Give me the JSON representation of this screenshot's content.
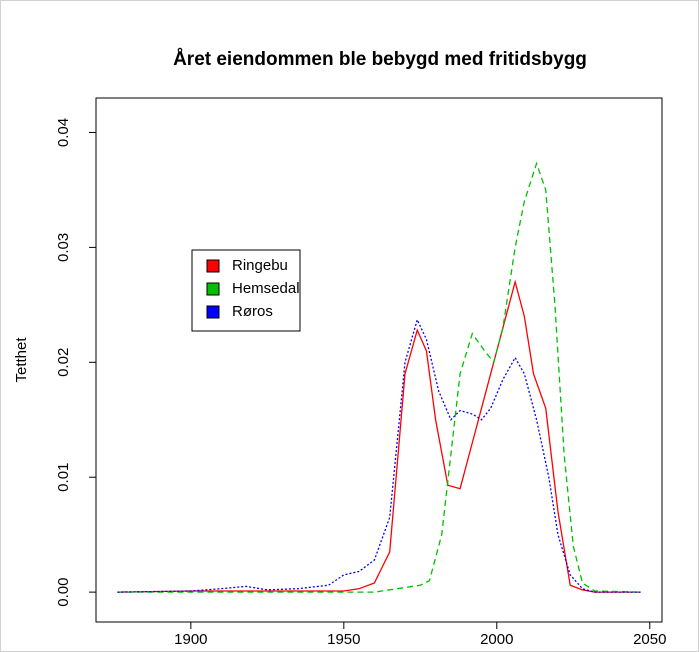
{
  "chart_data": {
    "type": "line",
    "title": "Året eiendommen ble bebygd med fritidsbygg",
    "y_label": "Tetthet",
    "xlim": [
      1869,
      2054
    ],
    "ylim": [
      -0.0026,
      0.043
    ],
    "xticks": [
      1900,
      1950,
      2000,
      2050
    ],
    "yticks": [
      {
        "value": 0,
        "label": "0.00"
      },
      0.01,
      0.02,
      0.03,
      0.04
    ],
    "legend": "left",
    "series": [
      {
        "name": "Ringebu",
        "color": "#ff0000",
        "linestyle": "solid",
        "x": [
          1876,
          1900,
          1930,
          1950,
          1955,
          1960,
          1965,
          1970,
          1974,
          1977,
          1980,
          1984,
          1988,
          1992,
          1996,
          2000,
          2004,
          2006,
          2009,
          2012,
          2016,
          2020,
          2024,
          2028,
          2032,
          2047
        ],
        "values": [
          0,
          0.0001,
          0.0001,
          0.0001,
          0.0003,
          0.0008,
          0.0035,
          0.019,
          0.0228,
          0.021,
          0.015,
          0.0093,
          0.009,
          0.013,
          0.017,
          0.021,
          0.025,
          0.027,
          0.024,
          0.019,
          0.016,
          0.007,
          0.0006,
          0.0002,
          0,
          0
        ]
      },
      {
        "name": "Hemsedal",
        "color": "#00c000",
        "linestyle": "dashed",
        "x": [
          1876,
          1930,
          1960,
          1965,
          1970,
          1975,
          1978,
          1982,
          1985,
          1988,
          1992,
          1996,
          1999,
          2002,
          2006,
          2009,
          2013,
          2016,
          2019,
          2022,
          2025,
          2028,
          2032,
          2047
        ],
        "values": [
          0,
          0,
          0,
          0.0002,
          0.0004,
          0.0006,
          0.001,
          0.005,
          0.012,
          0.019,
          0.0225,
          0.021,
          0.02,
          0.023,
          0.03,
          0.034,
          0.0373,
          0.035,
          0.025,
          0.012,
          0.004,
          0.0008,
          0.0001,
          0
        ]
      },
      {
        "name": "Røros",
        "color": "#0000ff",
        "linestyle": "dotted",
        "x": [
          1876,
          1900,
          1910,
          1918,
          1925,
          1935,
          1945,
          1950,
          1955,
          1960,
          1965,
          1970,
          1974,
          1977,
          1981,
          1985,
          1988,
          1992,
          1995,
          1998,
          2002,
          2006,
          2009,
          2013,
          2017,
          2020,
          2024,
          2028,
          2032,
          2047
        ],
        "values": [
          0,
          0.0001,
          0.0003,
          0.0005,
          0.0002,
          0.0003,
          0.0006,
          0.0015,
          0.0018,
          0.0028,
          0.0065,
          0.02,
          0.0237,
          0.022,
          0.0175,
          0.015,
          0.0158,
          0.0155,
          0.015,
          0.016,
          0.0185,
          0.0204,
          0.019,
          0.015,
          0.01,
          0.005,
          0.0015,
          0.0003,
          0,
          0
        ]
      }
    ]
  }
}
